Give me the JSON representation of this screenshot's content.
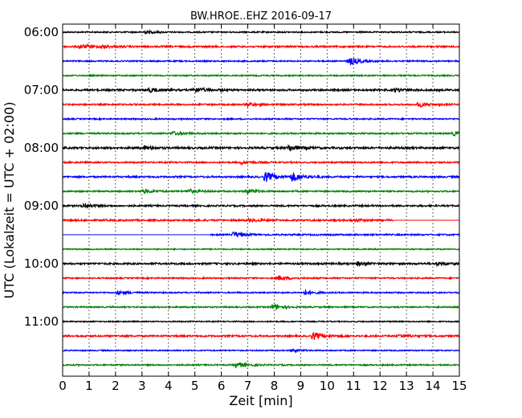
{
  "chart_data": {
    "type": "line",
    "title": "BW.HROE..EHZ 2016-09-17",
    "xlabel": "Zeit  [min]",
    "ylabel": "UTC (Lokalzeit = UTC + 02:00)",
    "xlim": [
      0,
      15
    ],
    "x_ticks": [
      "0",
      "1",
      "2",
      "3",
      "4",
      "5",
      "6",
      "7",
      "8",
      "9",
      "10",
      "11",
      "12",
      "13",
      "14",
      "15"
    ],
    "y_ticks": [
      {
        "label": "06:00",
        "trace": 0
      },
      {
        "label": "07:00",
        "trace": 4
      },
      {
        "label": "08:00",
        "trace": 8
      },
      {
        "label": "09:00",
        "trace": 12
      },
      {
        "label": "10:00",
        "trace": 16
      },
      {
        "label": "11:00",
        "trace": 20
      }
    ],
    "grid": "vertical dotted at each minute",
    "trace_interval_minutes": 15,
    "color_cycle": [
      "#000000",
      "#ff0000",
      "#0000ff",
      "#008000"
    ],
    "series": [
      {
        "start": "06:00",
        "amplitude": 0.8,
        "events": [
          [
            3.1,
            1.6
          ]
        ]
      },
      {
        "start": "06:15",
        "amplitude": 1.0,
        "events": [
          [
            0.7,
            2.2
          ],
          [
            1.5,
            1.6
          ]
        ]
      },
      {
        "start": "06:30",
        "amplitude": 0.8,
        "events": [
          [
            10.9,
            4.0
          ]
        ]
      },
      {
        "start": "06:45",
        "amplitude": 0.8,
        "events": []
      },
      {
        "start": "07:00",
        "amplitude": 1.1,
        "events": [
          [
            3.3,
            2.2
          ],
          [
            5.0,
            3.0
          ],
          [
            12.6,
            1.8
          ]
        ]
      },
      {
        "start": "07:15",
        "amplitude": 0.9,
        "events": [
          [
            7.0,
            2.0
          ],
          [
            13.5,
            2.4
          ]
        ]
      },
      {
        "start": "07:30",
        "amplitude": 0.8,
        "events": []
      },
      {
        "start": "07:45",
        "amplitude": 0.9,
        "events": [
          [
            4.2,
            1.8
          ],
          [
            14.8,
            2.0
          ]
        ]
      },
      {
        "start": "08:00",
        "amplitude": 1.2,
        "events": [
          [
            8.6,
            3.2
          ],
          [
            3.1,
            1.6
          ]
        ]
      },
      {
        "start": "08:15",
        "amplitude": 0.9,
        "events": [
          [
            6.8,
            1.6
          ]
        ]
      },
      {
        "start": "08:30",
        "amplitude": 1.0,
        "events": [
          [
            7.7,
            5.5
          ],
          [
            8.7,
            5.0
          ]
        ]
      },
      {
        "start": "08:45",
        "amplitude": 0.9,
        "events": [
          [
            3.1,
            2.0
          ],
          [
            4.8,
            2.2
          ],
          [
            7.0,
            2.2
          ]
        ]
      },
      {
        "start": "09:00",
        "amplitude": 1.0,
        "events": [
          [
            0.8,
            2.0
          ]
        ]
      },
      {
        "start": "09:15",
        "amplitude": 1.0,
        "events": [
          [
            7.1,
            1.6
          ],
          [
            11.0,
            1.6
          ]
        ],
        "end": 12.5
      },
      {
        "start": "09:30",
        "amplitude": 0.9,
        "events": [
          [
            6.5,
            3.0
          ]
        ],
        "begin": 5.6
      },
      {
        "start": "09:45",
        "amplitude": 0.7,
        "events": []
      },
      {
        "start": "10:00",
        "amplitude": 1.1,
        "events": [
          [
            11.2,
            1.8
          ],
          [
            14.2,
            1.8
          ]
        ]
      },
      {
        "start": "10:15",
        "amplitude": 0.8,
        "events": [
          [
            8.2,
            2.6
          ]
        ]
      },
      {
        "start": "10:30",
        "amplitude": 0.8,
        "events": [
          [
            2.1,
            2.0
          ],
          [
            9.2,
            2.2
          ]
        ]
      },
      {
        "start": "10:45",
        "amplitude": 0.8,
        "events": [
          [
            8.0,
            3.0
          ]
        ]
      },
      {
        "start": "11:00",
        "amplitude": 0.7,
        "events": []
      },
      {
        "start": "11:15",
        "amplitude": 1.0,
        "events": [
          [
            9.5,
            4.0
          ],
          [
            12.8,
            1.6
          ]
        ]
      },
      {
        "start": "11:30",
        "amplitude": 0.7,
        "events": [
          [
            8.7,
            1.6
          ]
        ]
      },
      {
        "start": "11:45",
        "amplitude": 0.8,
        "events": [
          [
            6.6,
            3.2
          ]
        ]
      }
    ]
  }
}
